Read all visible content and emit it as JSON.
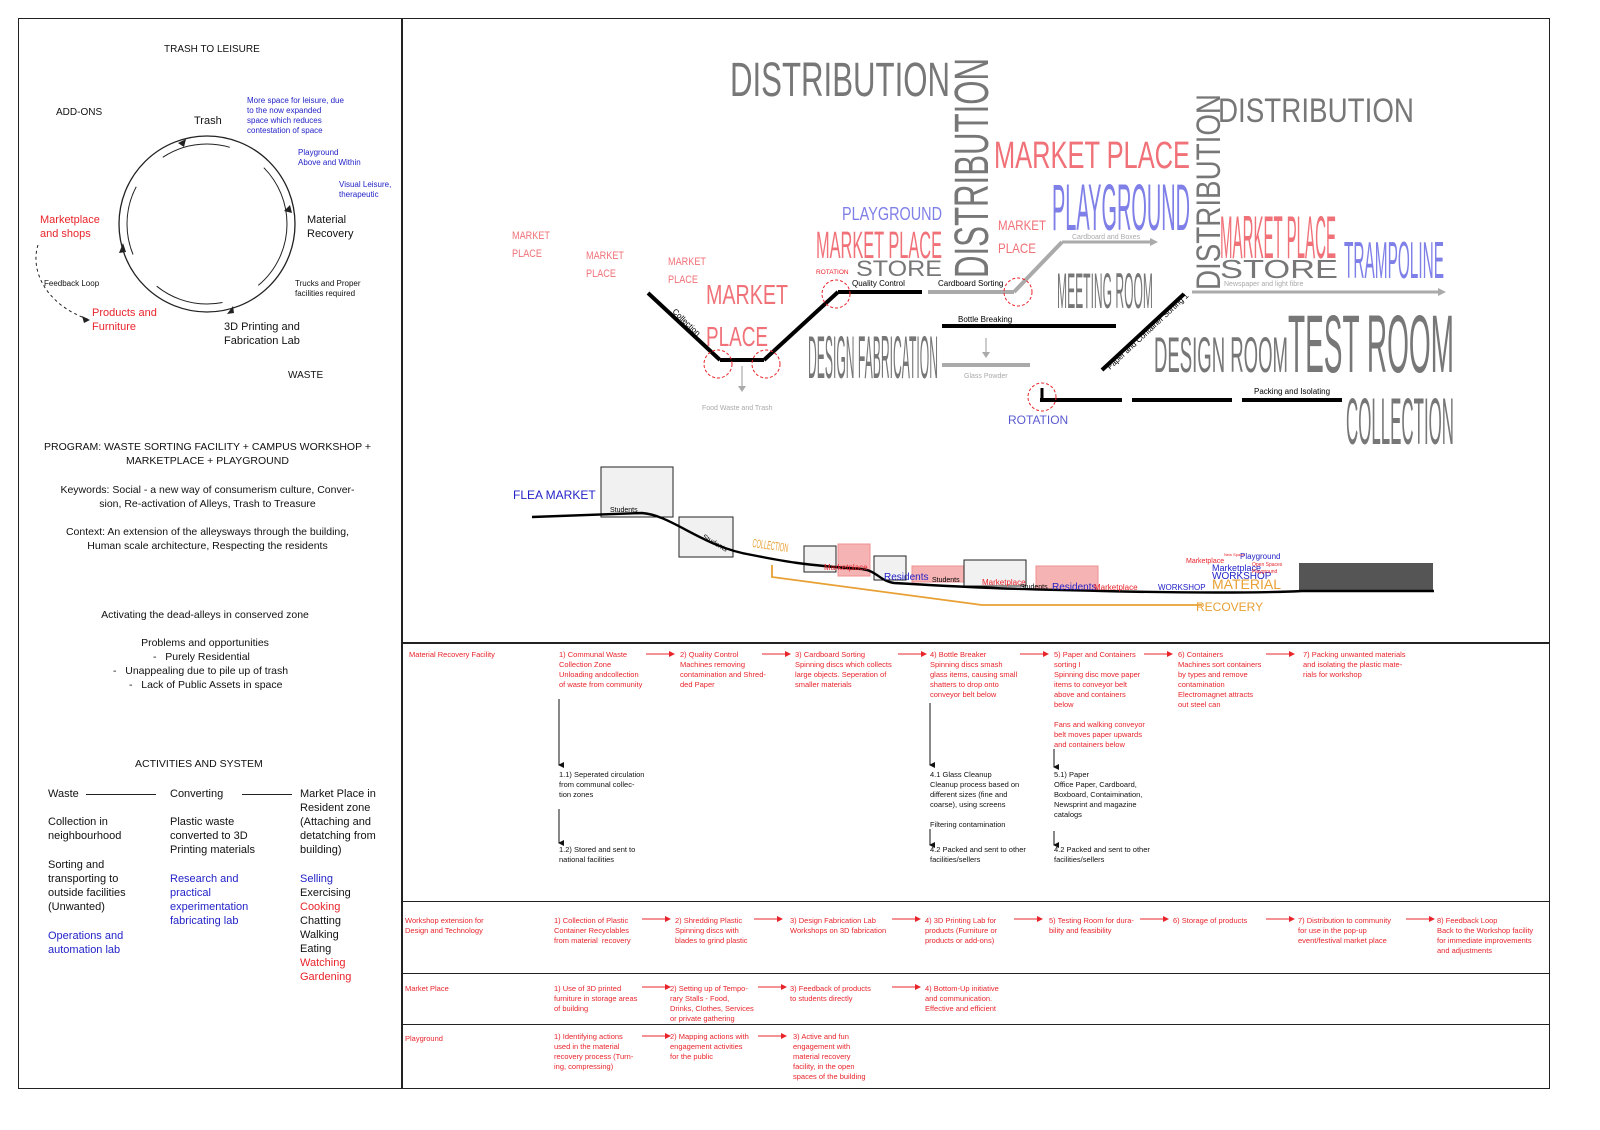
{
  "left": {
    "title": "TRASH TO LEISURE",
    "addons": "ADD-ONS",
    "cycle": {
      "trash": "Trash",
      "material_recovery": "Material\nRecovery",
      "printing_lab": "3D Printing and\nFabrication Lab",
      "products": "Products and\nFurniture",
      "marketplace": "Marketplace\nand shops",
      "feedback": "Feedback Loop",
      "trucks": "Trucks and Proper\nfacilities required",
      "waste": "WASTE",
      "note1": "More space for leisure, due\nto the now expanded\nspace which reduces\ncontestation of space",
      "note2": "Playground\nAbove and Within",
      "note3": "Visual Leisure,\ntherapeutic"
    },
    "program": "PROGRAM: WASTE SORTING FACILITY + CAMPUS WORKSHOP +\nMARKETPLACE + PLAYGROUND",
    "keywords": "Keywords: Social - a new way of consumerism culture, Conver-\nsion, Re-activation of Alleys, Trash to Treasure",
    "context": "Context: An extension of the alleysways through the building,\nHuman scale architecture, Respecting the residents",
    "activating": "Activating the dead-alleys in conserved zone",
    "problems_title": "Problems and opportunities",
    "problems": [
      "-   Purely Residential",
      "-   Unappealing due to pile up of trash",
      "-   Lack of Public Assets in space"
    ],
    "activities_title": "ACTIVITIES AND SYSTEM",
    "col1": {
      "head": "Waste",
      "items": [
        "Collection in\nneighbourhood",
        "Sorting and\ntransporting to\noutside facilities\n(Unwanted)"
      ],
      "blue": "Operations and\nautomation lab"
    },
    "col2": {
      "head": "Converting",
      "items": [
        "Plastic waste\nconverted to 3D\nPrinting materials"
      ],
      "blue": "Research and\npractical\nexperimentation\nfabricating lab"
    },
    "col3": {
      "head": "Market Place in\nResident zone\n(Attaching and\ndetatching from\nbuilding)",
      "list": [
        {
          "t": "Selling",
          "c": "blue"
        },
        {
          "t": "Exercising",
          "c": "black"
        },
        {
          "t": "Cooking",
          "c": "red"
        },
        {
          "t": "Chatting",
          "c": "black"
        },
        {
          "t": "Walking",
          "c": "black"
        },
        {
          "t": "Eating",
          "c": "black"
        },
        {
          "t": "Watching",
          "c": "red"
        },
        {
          "t": "Gardening",
          "c": "red"
        }
      ]
    }
  },
  "diagram": {
    "distribution": "DISTRIBUTION",
    "market_place": "MARKET PLACE",
    "playground": "PLAYGROUND",
    "store": "STORE",
    "design_fabrication": "DESIGN FABRICATION",
    "meeting_room": "MEETING ROOM",
    "design_room": "DESIGN ROOM",
    "test_room": "TEST ROOM",
    "collection": "COLLECTION",
    "trampoline": "TRAMPOLINE",
    "market": "MARKET",
    "place": "PLACE",
    "rotation": "ROTATION",
    "collection_label": "Collection",
    "quality_control": "Quality Control",
    "cardboard_sorting": "Cardboard Sorting",
    "bottle_breaking": "Bottle Breaking",
    "glass_powder": "Glass Powder",
    "food_waste": "Food Waste and Trash",
    "cardboard_boxes": "Cardboard and Boxes",
    "newspaper": "Newspaper and light fibre",
    "packing": "Packing and Isolating",
    "paper_container": "Paper and Container Sorting 1"
  },
  "section": {
    "flea_market": "FLEA MARKET",
    "students": "Students",
    "collection": "COLLECTION",
    "marketplace": "Marketplace",
    "residents": "Residents",
    "recovery": "RECOVERY",
    "material": "MATERIAL",
    "workshop": "WORKSHOP",
    "playground": "Playground",
    "open_spaces": "Open Spaces",
    "new_space": "New Space",
    "market_small": "Marketplace"
  },
  "table": {
    "rows": [
      {
        "label": "Material Recovery Facility",
        "steps": [
          "1) Communal Waste\nCollection Zone\nUnloading andcollection\nof waste from community",
          "2) Quality Control\nMachines removing\ncontamination and Shred-\nded Paper",
          "3) Cardboard Sorting\nSpinning discs which collects\nlarge objects. Seperation of\nsmaller materials",
          "4) Bottle Breaker\nSpinning discs smash\nglass items, causing small\nshatters to drop onto\nconveyor belt below",
          "5) Paper and Containers\nsorting I\nSpinning disc move paper\nitems to conveyor belt\nabove and containers\nbelow",
          "6) Containers\nMachines sort containers\nby types and remove\ncontamination\nElectromagnet attracts\nout steel can",
          "7) Packing unwanted materials\nand isolating the plastic mate-\nrials for workshop"
        ],
        "extra": {
          "fans": "Fans and walking conveyor\nbelt moves paper upwards\nand containers below",
          "s11": "1.1) Seperated circulation\nfrom communal collec-\ntion zones",
          "s12": "1.2) Stored and sent to\nnational facilities",
          "s41": "4.1 Glass Cleanup\nCleanup process based on\ndifferent sizes (fine and\ncoarse), using screens",
          "filter": "Filtering contamination",
          "s42": "4.2 Packed and sent to other\nfacilities/sellers",
          "s51": "5.1) Paper\nOffice Paper, Cardboard,\nBoxboard, Contaimination,\nNewsprint and magazine\ncatalogs",
          "s52": "4.2 Packed and sent to other\nfacilities/sellers"
        }
      },
      {
        "label": "Workshop extension for\nDesign and Technology",
        "steps": [
          "1) Collection of Plastic\nContainer Recyclables\nfrom material  recovery",
          "2) Shredding Plastic\nSpinning discs with\nblades to grind plastic",
          "3) Design Fabrication Lab\nWorkshops on 3D fabrication",
          "4) 3D Printing Lab for\nproducts (Furniture or\nproducts or add-ons)",
          "5) Testing Room for dura-\nbility and feasibility",
          "6) Storage of products",
          "7) Distribution to community\nfor use in the pop-up\nevent/festival market place",
          "8) Feedback Loop\nBack to the Workshop facility\nfor immediate improvements\nand adjustments"
        ]
      },
      {
        "label": "Market Place",
        "steps": [
          "1) Use of 3D printed\nfurniture in storage areas\nof building",
          "2) Setting up of Tempo-\nrary Stalls - Food,\nDrinks, Clothes, Services\nor private gathering",
          "3) Feedback of products\nto students directly",
          "4) Bottom-Up initiative\nand communication.\nEffective and efficient"
        ]
      },
      {
        "label": "Playground",
        "steps": [
          "1) Identifying actions\nused in the material\nrecovery process (Turn-\ning, compressing)",
          "2) Mapping actions with\nengagement activities\nfor the public",
          "3) Active and fun\nengagement with\nmaterial recovery\nfacility, in the open\nspaces of the building"
        ]
      }
    ]
  }
}
